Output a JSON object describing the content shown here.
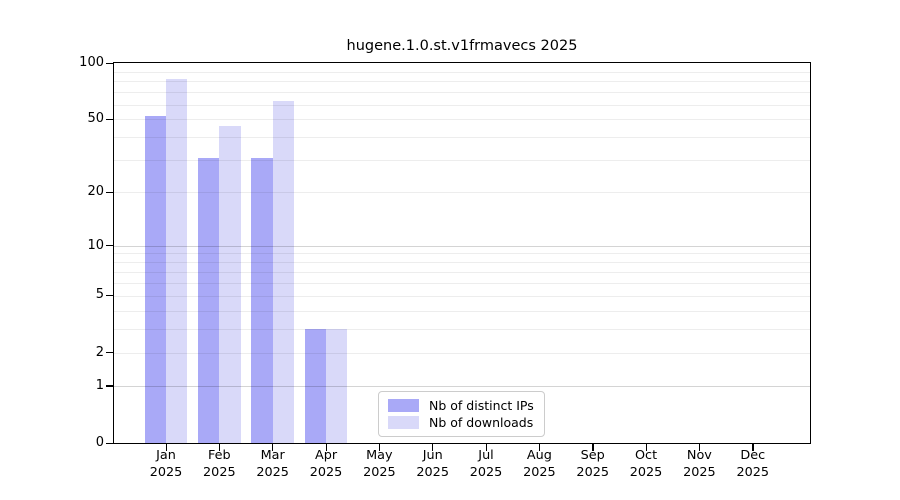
{
  "title": "hugene.1.0.st.v1frmavecs 2025",
  "chart_data": {
    "type": "bar",
    "title": "hugene.1.0.st.v1frmavecs 2025",
    "categories": [
      "Jan 2025",
      "Feb 2025",
      "Mar 2025",
      "Apr 2025",
      "May 2025",
      "Jun 2025",
      "Jul 2025",
      "Aug 2025",
      "Sep 2025",
      "Oct 2025",
      "Nov 2025",
      "Dec 2025"
    ],
    "series": [
      {
        "name": "Nb of distinct IPs",
        "color": "#a9a9f7",
        "values": [
          52,
          31,
          31,
          3,
          0,
          0,
          0,
          0,
          0,
          0,
          0,
          0
        ]
      },
      {
        "name": "Nb of downloads",
        "color": "#d9d9f9",
        "values": [
          82,
          46,
          63,
          3,
          0,
          0,
          0,
          0,
          0,
          0,
          0,
          0
        ]
      }
    ],
    "xlabel": "",
    "ylabel": "",
    "ylim": [
      0,
      100
    ],
    "yscale": "log1p",
    "yticks": [
      100,
      50,
      20,
      10,
      5,
      2,
      1,
      0
    ],
    "minor_gridlines": [
      2,
      3,
      4,
      5,
      6,
      7,
      8,
      9,
      20,
      30,
      40,
      50,
      60,
      70,
      80,
      90
    ],
    "major_gridlines": [
      1,
      10
    ],
    "grid": true,
    "legend_position": "lower center, inside plot"
  },
  "legend": {
    "items": [
      {
        "label": "Nb of distinct IPs",
        "color": "#a9a9f7"
      },
      {
        "label": "Nb of downloads",
        "color": "#d9d9f9"
      }
    ]
  }
}
